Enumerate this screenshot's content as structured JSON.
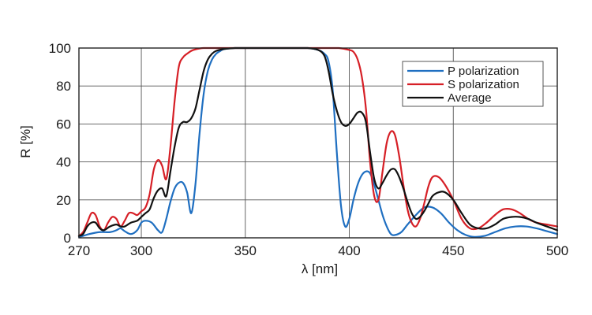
{
  "chart_data": {
    "type": "line",
    "title": "",
    "xlabel": "λ [nm]",
    "ylabel": "R [%]",
    "xlim": [
      270,
      500
    ],
    "ylim": [
      0,
      100
    ],
    "x_ticks": [
      270,
      300,
      350,
      400,
      450,
      500
    ],
    "y_ticks": [
      0,
      20,
      40,
      60,
      80,
      100
    ],
    "grid": true,
    "legend_position": "top-right",
    "series": [
      {
        "name": "P polarization",
        "color": "#1f6fc1",
        "points": [
          [
            270,
            0.5
          ],
          [
            272,
            1
          ],
          [
            275,
            2
          ],
          [
            280,
            3
          ],
          [
            285,
            3
          ],
          [
            288,
            4
          ],
          [
            290,
            5
          ],
          [
            292,
            3.5
          ],
          [
            295,
            2
          ],
          [
            298,
            4
          ],
          [
            300,
            8
          ],
          [
            302,
            9
          ],
          [
            305,
            8
          ],
          [
            308,
            4
          ],
          [
            310,
            3
          ],
          [
            312,
            10
          ],
          [
            314,
            19
          ],
          [
            316,
            26
          ],
          [
            318,
            29
          ],
          [
            320,
            29
          ],
          [
            322,
            24
          ],
          [
            324,
            13
          ],
          [
            326,
            28
          ],
          [
            328,
            55
          ],
          [
            330,
            76
          ],
          [
            332,
            88
          ],
          [
            334,
            94
          ],
          [
            336,
            97
          ],
          [
            338,
            98.5
          ],
          [
            340,
            99.5
          ],
          [
            345,
            100
          ],
          [
            350,
            100
          ],
          [
            360,
            100
          ],
          [
            370,
            100
          ],
          [
            380,
            100
          ],
          [
            385,
            99
          ],
          [
            388,
            97
          ],
          [
            390,
            93
          ],
          [
            392,
            78
          ],
          [
            394,
            45
          ],
          [
            396,
            17
          ],
          [
            398,
            6
          ],
          [
            400,
            10
          ],
          [
            402,
            20
          ],
          [
            404,
            28
          ],
          [
            406,
            33
          ],
          [
            408,
            35
          ],
          [
            410,
            34
          ],
          [
            412,
            28
          ],
          [
            414,
            20
          ],
          [
            416,
            12
          ],
          [
            418,
            6
          ],
          [
            420,
            2
          ],
          [
            422,
            1.5
          ],
          [
            425,
            3
          ],
          [
            428,
            7
          ],
          [
            432,
            12
          ],
          [
            436,
            16
          ],
          [
            440,
            16
          ],
          [
            444,
            13
          ],
          [
            448,
            8
          ],
          [
            452,
            4
          ],
          [
            456,
            1.5
          ],
          [
            460,
            0.5
          ],
          [
            465,
            1
          ],
          [
            470,
            3
          ],
          [
            475,
            5
          ],
          [
            480,
            6
          ],
          [
            485,
            6
          ],
          [
            490,
            5
          ],
          [
            495,
            3.5
          ],
          [
            500,
            2
          ]
        ]
      },
      {
        "name": "S polarization",
        "color": "#d61f26",
        "points": [
          [
            270,
            1
          ],
          [
            272,
            3
          ],
          [
            274,
            8
          ],
          [
            276,
            13
          ],
          [
            278,
            12
          ],
          [
            280,
            6
          ],
          [
            282,
            4
          ],
          [
            284,
            8
          ],
          [
            286,
            11
          ],
          [
            288,
            10
          ],
          [
            290,
            6
          ],
          [
            292,
            9
          ],
          [
            294,
            13
          ],
          [
            296,
            13
          ],
          [
            298,
            12
          ],
          [
            300,
            14
          ],
          [
            302,
            16
          ],
          [
            304,
            23
          ],
          [
            306,
            36
          ],
          [
            308,
            41
          ],
          [
            310,
            38
          ],
          [
            312,
            31
          ],
          [
            314,
            48
          ],
          [
            316,
            72
          ],
          [
            318,
            90
          ],
          [
            320,
            95
          ],
          [
            322,
            97
          ],
          [
            325,
            99
          ],
          [
            330,
            100
          ],
          [
            340,
            100
          ],
          [
            350,
            100
          ],
          [
            360,
            100
          ],
          [
            370,
            100
          ],
          [
            380,
            100
          ],
          [
            390,
            100
          ],
          [
            395,
            100
          ],
          [
            400,
            99
          ],
          [
            402,
            98
          ],
          [
            404,
            94
          ],
          [
            406,
            85
          ],
          [
            408,
            68
          ],
          [
            410,
            40
          ],
          [
            412,
            22
          ],
          [
            414,
            20
          ],
          [
            416,
            35
          ],
          [
            418,
            50
          ],
          [
            420,
            56
          ],
          [
            422,
            54
          ],
          [
            424,
            43
          ],
          [
            426,
            28
          ],
          [
            428,
            15
          ],
          [
            430,
            8
          ],
          [
            432,
            6
          ],
          [
            434,
            10
          ],
          [
            436,
            18
          ],
          [
            438,
            27
          ],
          [
            440,
            32
          ],
          [
            443,
            32
          ],
          [
            446,
            28
          ],
          [
            450,
            20
          ],
          [
            454,
            10
          ],
          [
            458,
            5
          ],
          [
            462,
            5
          ],
          [
            466,
            8
          ],
          [
            470,
            12
          ],
          [
            474,
            15
          ],
          [
            478,
            15
          ],
          [
            482,
            13
          ],
          [
            486,
            10
          ],
          [
            490,
            8
          ],
          [
            495,
            7
          ],
          [
            500,
            6
          ]
        ]
      },
      {
        "name": "Average",
        "color": "#111111",
        "points": [
          [
            270,
            1
          ],
          [
            272,
            2
          ],
          [
            274,
            6
          ],
          [
            276,
            8
          ],
          [
            278,
            8
          ],
          [
            280,
            5
          ],
          [
            282,
            4
          ],
          [
            285,
            6
          ],
          [
            288,
            7
          ],
          [
            290,
            6
          ],
          [
            292,
            6
          ],
          [
            295,
            8
          ],
          [
            298,
            9
          ],
          [
            300,
            11
          ],
          [
            302,
            13
          ],
          [
            304,
            15
          ],
          [
            306,
            21
          ],
          [
            308,
            25
          ],
          [
            310,
            26
          ],
          [
            312,
            22
          ],
          [
            314,
            35
          ],
          [
            316,
            48
          ],
          [
            318,
            58
          ],
          [
            320,
            61
          ],
          [
            322,
            61
          ],
          [
            324,
            63
          ],
          [
            326,
            68
          ],
          [
            328,
            78
          ],
          [
            330,
            88
          ],
          [
            332,
            94
          ],
          [
            334,
            97
          ],
          [
            336,
            98.5
          ],
          [
            340,
            99.5
          ],
          [
            345,
            100
          ],
          [
            350,
            100
          ],
          [
            360,
            100
          ],
          [
            370,
            100
          ],
          [
            380,
            100
          ],
          [
            385,
            99
          ],
          [
            388,
            96
          ],
          [
            390,
            88
          ],
          [
            392,
            76
          ],
          [
            394,
            67
          ],
          [
            396,
            61
          ],
          [
            398,
            59
          ],
          [
            400,
            60
          ],
          [
            402,
            63
          ],
          [
            404,
            66
          ],
          [
            406,
            66
          ],
          [
            408,
            61
          ],
          [
            410,
            45
          ],
          [
            412,
            31
          ],
          [
            414,
            26
          ],
          [
            416,
            29
          ],
          [
            418,
            33
          ],
          [
            420,
            36
          ],
          [
            422,
            36
          ],
          [
            424,
            32
          ],
          [
            426,
            26
          ],
          [
            428,
            19
          ],
          [
            430,
            13
          ],
          [
            432,
            10
          ],
          [
            434,
            11
          ],
          [
            436,
            14
          ],
          [
            438,
            18
          ],
          [
            440,
            22
          ],
          [
            443,
            24
          ],
          [
            446,
            24
          ],
          [
            450,
            20
          ],
          [
            454,
            13
          ],
          [
            458,
            7
          ],
          [
            462,
            5
          ],
          [
            466,
            5
          ],
          [
            470,
            7
          ],
          [
            474,
            10
          ],
          [
            478,
            11
          ],
          [
            482,
            11
          ],
          [
            486,
            10
          ],
          [
            490,
            8
          ],
          [
            495,
            6
          ],
          [
            500,
            4
          ]
        ]
      }
    ]
  }
}
